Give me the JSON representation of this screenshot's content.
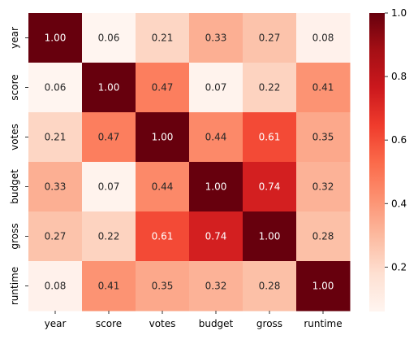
{
  "chart_data": {
    "type": "heatmap",
    "title": "",
    "xlabel": "",
    "ylabel": "",
    "row_labels": [
      "year",
      "score",
      "votes",
      "budget",
      "gross",
      "runtime"
    ],
    "col_labels": [
      "year",
      "score",
      "votes",
      "budget",
      "gross",
      "runtime"
    ],
    "values": [
      [
        1.0,
        0.06,
        0.21,
        0.33,
        0.27,
        0.08
      ],
      [
        0.06,
        1.0,
        0.47,
        0.07,
        0.22,
        0.41
      ],
      [
        0.21,
        0.47,
        1.0,
        0.44,
        0.61,
        0.35
      ],
      [
        0.33,
        0.07,
        0.44,
        1.0,
        0.74,
        0.32
      ],
      [
        0.27,
        0.22,
        0.61,
        0.74,
        1.0,
        0.28
      ],
      [
        0.08,
        0.41,
        0.35,
        0.32,
        0.28,
        1.0
      ]
    ],
    "value_format": "2 decimals",
    "colormap": "Reds",
    "color_range": [
      0.06,
      1.0
    ],
    "colorbar": {
      "ticks": [
        0.2,
        0.4,
        0.6,
        0.8,
        1.0
      ],
      "tick_labels": [
        "0.2",
        "0.4",
        "0.6",
        "0.8",
        "1.0"
      ],
      "placement": "right"
    }
  }
}
